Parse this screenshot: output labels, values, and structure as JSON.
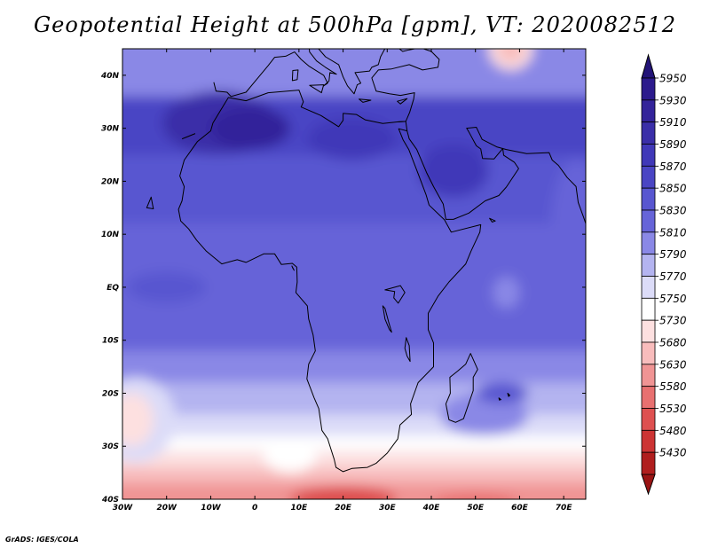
{
  "title": "Geopotential Height at 500hPa [gpm], VT: 2020082512",
  "credit": "GrADS: IGES/COLA",
  "map": {
    "projection": "lat-lon",
    "lon_range": [
      -30,
      75
    ],
    "lat_range": [
      -40,
      45
    ],
    "lon_ticks": [
      {
        "value": -30,
        "label": "30W"
      },
      {
        "value": -20,
        "label": "20W"
      },
      {
        "value": -10,
        "label": "10W"
      },
      {
        "value": 0,
        "label": "0"
      },
      {
        "value": 10,
        "label": "10E"
      },
      {
        "value": 20,
        "label": "20E"
      },
      {
        "value": 30,
        "label": "30E"
      },
      {
        "value": 40,
        "label": "40E"
      },
      {
        "value": 50,
        "label": "50E"
      },
      {
        "value": 60,
        "label": "60E"
      },
      {
        "value": 70,
        "label": "70E"
      }
    ],
    "lat_ticks": [
      {
        "value": 40,
        "label": "40N"
      },
      {
        "value": 30,
        "label": "30N"
      },
      {
        "value": 20,
        "label": "20N"
      },
      {
        "value": 10,
        "label": "10N"
      },
      {
        "value": 0,
        "label": "EQ"
      },
      {
        "value": -10,
        "label": "10S"
      },
      {
        "value": -20,
        "label": "20S"
      },
      {
        "value": -30,
        "label": "30S"
      },
      {
        "value": -40,
        "label": "40S"
      }
    ]
  },
  "colorbar": {
    "orientation": "vertical",
    "placement": "right",
    "levels": [
      {
        "label": "5950",
        "color": "#2c1a8c"
      },
      {
        "label": "5930",
        "color": "#33239a"
      },
      {
        "label": "5910",
        "color": "#3a2ea8"
      },
      {
        "label": "5890",
        "color": "#4038b8"
      },
      {
        "label": "5870",
        "color": "#4a45c4"
      },
      {
        "label": "5850",
        "color": "#5856d0"
      },
      {
        "label": "5830",
        "color": "#6664d8"
      },
      {
        "label": "5810",
        "color": "#8a88e6"
      },
      {
        "label": "5790",
        "color": "#b4b4f0"
      },
      {
        "label": "5770",
        "color": "#dcdcf8"
      },
      {
        "label": "5750",
        "color": "#ffffff"
      },
      {
        "label": "5730",
        "color": "#fde0e0"
      },
      {
        "label": "5680",
        "color": "#f8bcbc"
      },
      {
        "label": "5630",
        "color": "#f09494"
      },
      {
        "label": "5580",
        "color": "#e87070"
      },
      {
        "label": "5530",
        "color": "#de5050"
      },
      {
        "label": "5480",
        "color": "#cc3434"
      },
      {
        "label": "5430",
        "color": "#b01e1e"
      }
    ],
    "overflow_top_color": "#231478",
    "overflow_bottom_color": "#9a1414"
  }
}
